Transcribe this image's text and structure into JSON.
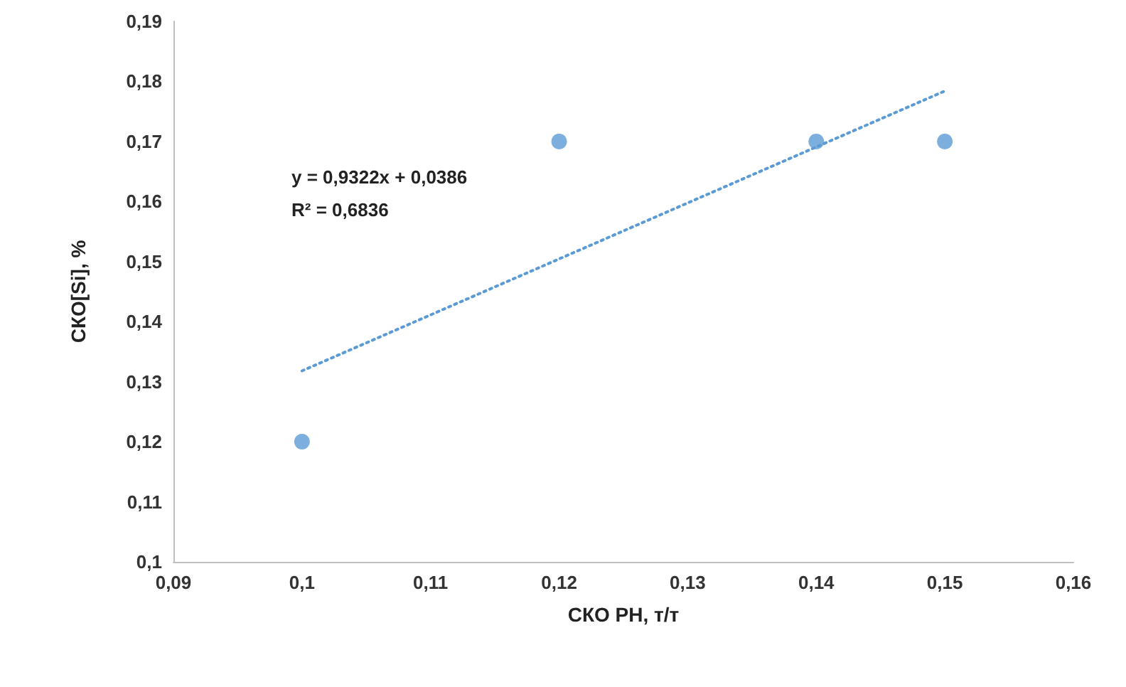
{
  "chart_data": {
    "type": "scatter",
    "xlabel": "СКО РН, т/т",
    "ylabel": "СКО[Si], %",
    "series": [
      {
        "color": "#5b9bd5",
        "x": [
          0.1,
          0.12,
          0.14,
          0.15
        ],
        "values": [
          0.12,
          0.17,
          0.17,
          0.17
        ],
        "marker": "circle"
      },
      {
        "type": "line",
        "color": "#5b9bd5",
        "x": [
          0.1,
          0.15
        ],
        "values": [
          0.1318,
          0.1784
        ],
        "line_style": "dotted",
        "marker": "none"
      }
    ],
    "annotations": [
      "y = 0,9322x + 0,0386",
      "R² = 0,6836"
    ],
    "xlim": [
      0.09,
      0.16
    ],
    "xticks": [
      {
        "value": 0.09,
        "label": "0,09"
      },
      {
        "value": 0.1,
        "label": "0,1"
      },
      {
        "value": 0.11,
        "label": "0,11"
      },
      {
        "value": 0.12,
        "label": "0,12"
      },
      {
        "value": 0.13,
        "label": "0,13"
      },
      {
        "value": 0.14,
        "label": "0,14"
      },
      {
        "value": 0.15,
        "label": "0,15"
      },
      {
        "value": 0.16,
        "label": "0,16"
      }
    ],
    "ylim": [
      0.1,
      0.19
    ],
    "yticks": [
      {
        "value": 0.1,
        "label": "0,1"
      },
      {
        "value": 0.11,
        "label": "0,11"
      },
      {
        "value": 0.12,
        "label": "0,12"
      },
      {
        "value": 0.13,
        "label": "0,13"
      },
      {
        "value": 0.14,
        "label": "0,14"
      },
      {
        "value": 0.15,
        "label": "0,15"
      },
      {
        "value": 0.16,
        "label": "0,16"
      },
      {
        "value": 0.17,
        "label": "0,17"
      },
      {
        "value": 0.18,
        "label": "0,18"
      },
      {
        "value": 0.19,
        "label": "0,19"
      }
    ],
    "grid": false
  }
}
